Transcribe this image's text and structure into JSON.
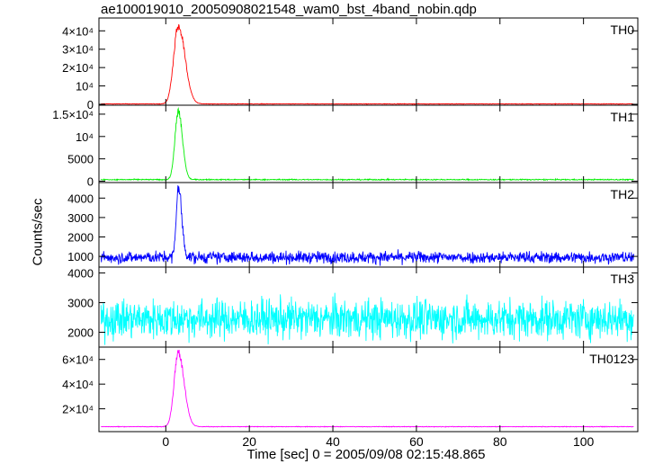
{
  "title": "ae100019010_20050908021548_wam0_bst_4band_nobin.qdp",
  "ylabel": "Counts/sec",
  "xlabel": "Time [sec] 0 = 2005/09/08 02:15:48.865",
  "chart_data": {
    "type": "line",
    "title": "ae100019010_20050908021548_wam0_bst_4band_nobin.qdp",
    "xlabel": "Time [sec] 0 = 2005/09/08 02:15:48.865",
    "ylabel": "Counts/sec",
    "xlim": [
      -16,
      113
    ],
    "xticks": [
      0,
      20,
      40,
      60,
      80,
      100
    ],
    "xtick_labels": [
      "0",
      "20",
      "40",
      "60",
      "80",
      "100"
    ],
    "x_range": [
      -15.5,
      112
    ],
    "grid": false,
    "legend": "none",
    "panels": [
      {
        "name": "TH0",
        "color": "#ff0000",
        "ylim": [
          -500,
          47000
        ],
        "yticks": [
          0,
          10000,
          20000,
          30000,
          40000
        ],
        "ytick_labels": [
          "0",
          "10⁴",
          "2×10⁴",
          "3×10⁴",
          "4×10⁴"
        ],
        "baseline": 200,
        "noise": 300,
        "peak": {
          "x": 3,
          "height": 45000,
          "rise": 1.1,
          "decay": 1.6
        }
      },
      {
        "name": "TH1",
        "color": "#00ee00",
        "ylim": [
          -300,
          17000
        ],
        "yticks": [
          0,
          5000,
          10000,
          15000
        ],
        "ytick_labels": [
          "0",
          "5000",
          "10⁴",
          "1.5×10⁴"
        ],
        "baseline": 350,
        "noise": 250,
        "peak": {
          "x": 3,
          "height": 16000,
          "rise": 0.8,
          "decay": 1.0
        }
      },
      {
        "name": "TH2",
        "color": "#0000ff",
        "ylim": [
          450,
          4800
        ],
        "yticks": [
          1000,
          2000,
          3000,
          4000
        ],
        "ytick_labels": [
          "1000",
          "2000",
          "3000",
          "4000"
        ],
        "baseline": 950,
        "noise": 600,
        "peak": {
          "x": 3,
          "height": 3800,
          "rise": 0.5,
          "decay": 0.8
        }
      },
      {
        "name": "TH3",
        "color": "#00ffff",
        "ylim": [
          1500,
          4200
        ],
        "yticks": [
          2000,
          3000,
          4000
        ],
        "ytick_labels": [
          "2000",
          "3000",
          "4000"
        ],
        "baseline": 2450,
        "noise": 1300,
        "peak": null
      },
      {
        "name": "TH0123",
        "color": "#ff00ff",
        "ylim": [
          1500,
          70000
        ],
        "yticks": [
          20000,
          40000,
          60000
        ],
        "ytick_labels": [
          "2×10⁴",
          "4×10⁴",
          "6×10⁴"
        ],
        "baseline": 5500,
        "noise": 500,
        "peak": {
          "x": 3,
          "height": 63000,
          "rise": 1.0,
          "decay": 1.4
        }
      }
    ]
  }
}
